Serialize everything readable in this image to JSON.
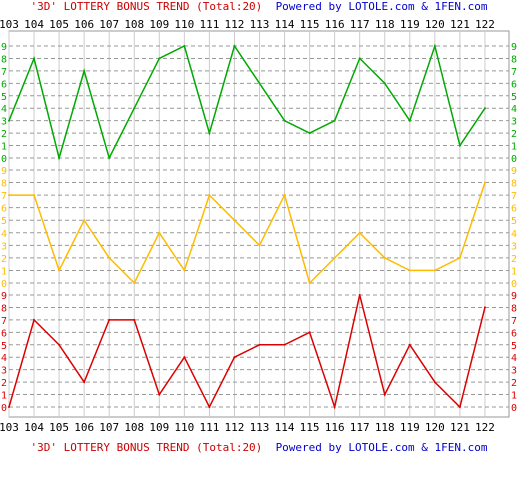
{
  "header": {
    "title": "'3D' LOTTERY BONUS TREND (Total:20)",
    "credit": "Powered by LOTOLE.com & 1FEN.com"
  },
  "footer": {
    "title": "'3D' LOTTERY BONUS TREND (Total:20)",
    "credit": "Powered by LOTOLE.com & 1FEN.com"
  },
  "chart_data": {
    "type": "line",
    "title": "'3D' LOTTERY BONUS TREND (Total:20)",
    "subtitle": "Powered by LOTOLE.com & 1FEN.com",
    "xlabel": "",
    "ylabel": "",
    "x": [
      "103",
      "104",
      "105",
      "106",
      "107",
      "108",
      "109",
      "110",
      "111",
      "112",
      "113",
      "114",
      "115",
      "116",
      "117",
      "118",
      "119",
      "120",
      "121",
      "122"
    ],
    "ylim": [
      0,
      9
    ],
    "yticks": [
      "0",
      "1",
      "2",
      "3",
      "4",
      "5",
      "6",
      "7",
      "8",
      "9"
    ],
    "grid": true,
    "series": [
      {
        "color": "#00aa00",
        "values": [
          3,
          8,
          0,
          7,
          0,
          4,
          8,
          9,
          2,
          9,
          6,
          3,
          2,
          3,
          8,
          6,
          3,
          9,
          1,
          4
        ]
      },
      {
        "color": "#ffbb00",
        "values": [
          7,
          7,
          1,
          5,
          2,
          0,
          4,
          1,
          7,
          5,
          3,
          7,
          0,
          2,
          4,
          2,
          1,
          1,
          2,
          8
        ]
      },
      {
        "color": "#dd0000",
        "values": [
          0,
          7,
          5,
          2,
          7,
          7,
          1,
          4,
          0,
          4,
          5,
          5,
          6,
          0,
          9,
          1,
          5,
          2,
          0,
          8
        ]
      }
    ]
  }
}
